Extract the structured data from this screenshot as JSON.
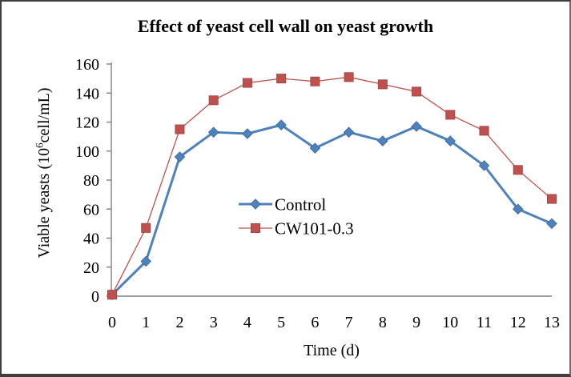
{
  "chart_data": {
    "type": "line",
    "title": "Effect of yeast cell wall on yeast growth",
    "xlabel": "Time (d)",
    "ylabel": "Viable yeasts (10⁶cell/mL)",
    "ylabel_parts": {
      "prefix": "Viable yeasts (10",
      "superscript": "6",
      "suffix": "cell/mL)"
    },
    "categories": [
      0,
      1,
      2,
      3,
      4,
      5,
      6,
      7,
      8,
      9,
      10,
      11,
      12,
      13
    ],
    "series": [
      {
        "name": "Control",
        "color": "#4F81BD",
        "marker_edge": "#3A679A",
        "marker": "diamond",
        "line_width": 3,
        "values": [
          1,
          24,
          96,
          113,
          112,
          118,
          102,
          113,
          107,
          117,
          107,
          90,
          60,
          50
        ]
      },
      {
        "name": "CW101-0.3",
        "color": "#C0504D",
        "marker_edge": "#9C4340",
        "marker": "square",
        "line_width": 1.3,
        "values": [
          1,
          47,
          115,
          135,
          147,
          150,
          148,
          151,
          146,
          141,
          125,
          114,
          87,
          67
        ]
      }
    ],
    "ylim": [
      0,
      160
    ],
    "ytick_step": 20,
    "xlim_categories": [
      "0",
      "13"
    ],
    "grid": false,
    "legend_position": "inside-center",
    "axis_color": "#808080",
    "text_color": "#000000",
    "background": "#FFFFFF"
  }
}
